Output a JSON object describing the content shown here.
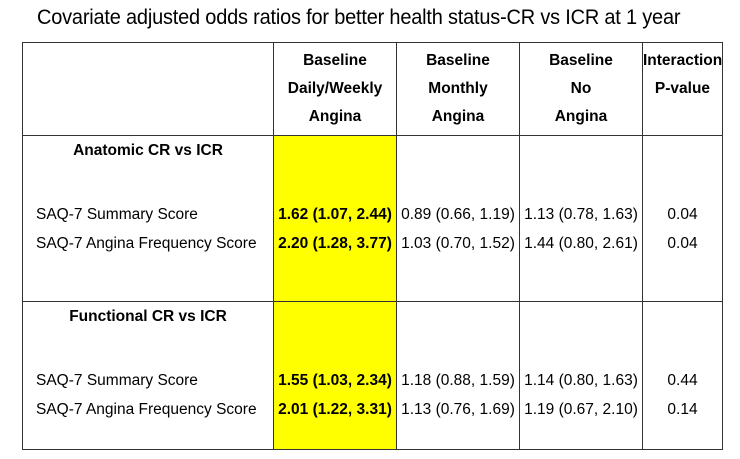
{
  "title": "Covariate adjusted odds ratios for better health status-CR vs ICR at 1 year",
  "headers": [
    "",
    [
      "Baseline",
      "Daily/Weekly",
      "Angina"
    ],
    [
      "Baseline",
      "Monthly",
      "Angina"
    ],
    [
      "Baseline",
      "No",
      "Angina"
    ],
    [
      "Interaction",
      "P-value"
    ]
  ],
  "sections": [
    {
      "title": "Anatomic CR vs ICR",
      "rows": [
        {
          "label": "SAQ-7 Summary Score",
          "daily_weekly": "1.62 (1.07, 2.44)",
          "monthly": "0.89 (0.66, 1.19)",
          "none": "1.13 (0.78, 1.63)",
          "p": "0.04"
        },
        {
          "label": "SAQ-7 Angina Frequency Score",
          "daily_weekly": "2.20 (1.28, 3.77)",
          "monthly": "1.03 (0.70, 1.52)",
          "none": "1.44 (0.80, 2.61)",
          "p": "0.04"
        }
      ]
    },
    {
      "title": "Functional CR vs ICR",
      "rows": [
        {
          "label": "SAQ-7 Summary Score",
          "daily_weekly": "1.55 (1.03, 2.34)",
          "monthly": "1.18 (0.88, 1.59)",
          "none": "1.14 (0.80, 1.63)",
          "p": "0.44"
        },
        {
          "label": "SAQ-7 Angina Frequency Score",
          "daily_weekly": "2.01 (1.22, 3.31)",
          "monthly": "1.13 (0.76, 1.69)",
          "none": "1.19 (0.67, 2.10)",
          "p": "0.14"
        }
      ]
    }
  ],
  "colors": {
    "highlight": "#ffff00",
    "border": "#333333"
  }
}
